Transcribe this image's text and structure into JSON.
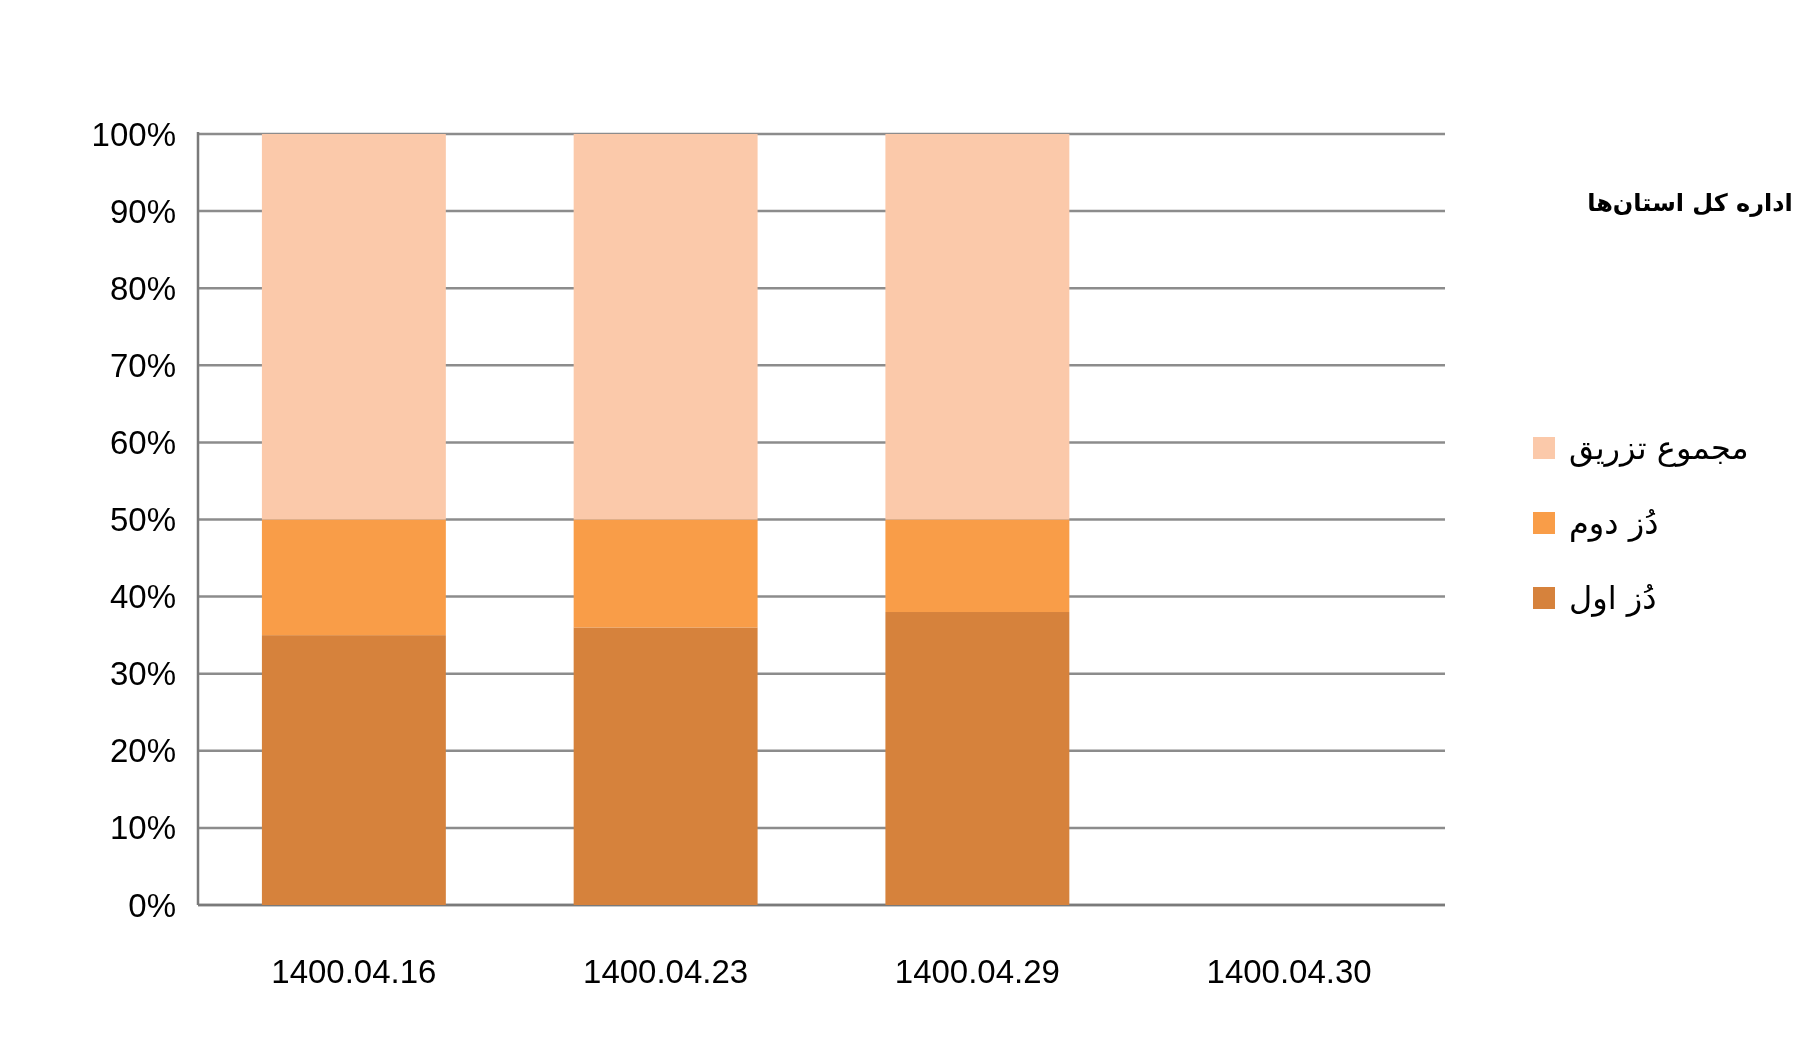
{
  "chart_data": {
    "type": "bar",
    "stacked": true,
    "categories": [
      "1400.04.16",
      "1400.04.23",
      "1400.04.29",
      "1400.04.30"
    ],
    "series": [
      {
        "name": "دُز اول",
        "color": "#d6823c",
        "values": [
          35,
          36,
          38,
          0
        ]
      },
      {
        "name": "دُز دوم",
        "color": "#f99d48",
        "values": [
          15,
          14,
          12,
          0
        ]
      },
      {
        "name": "مجموع تزریق",
        "color": "#fbc9aa",
        "values": [
          50,
          50,
          50,
          0
        ]
      }
    ],
    "ylim": [
      0,
      100
    ],
    "yticks": [
      {
        "value": 0,
        "label": "0%"
      },
      {
        "value": 10,
        "label": "10%"
      },
      {
        "value": 20,
        "label": "20%"
      },
      {
        "value": 30,
        "label": "30%"
      },
      {
        "value": 40,
        "label": "40%"
      },
      {
        "value": 50,
        "label": "50%"
      },
      {
        "value": 60,
        "label": "60%"
      },
      {
        "value": 70,
        "label": "70%"
      },
      {
        "value": 80,
        "label": "80%"
      },
      {
        "value": 90,
        "label": "90%"
      },
      {
        "value": 100,
        "label": "100%"
      }
    ],
    "grid": "y",
    "legend": "right",
    "annotations": [
      "اداره کل استان‌ها"
    ]
  }
}
